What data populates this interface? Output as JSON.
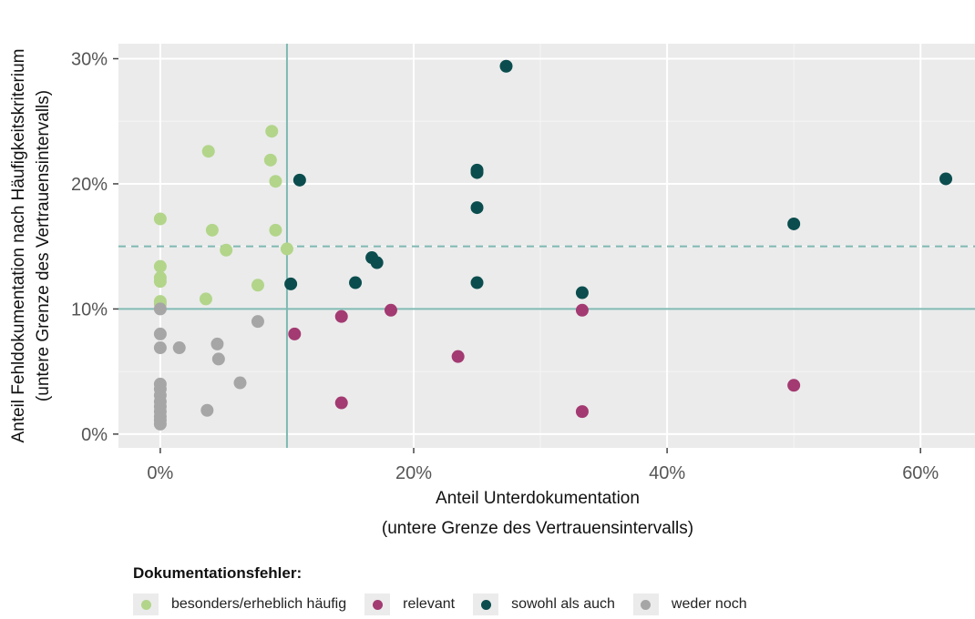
{
  "chart_data": {
    "type": "scatter",
    "xlabel_line1": "Anteil Unterdokumentation",
    "xlabel_line2": "(untere Grenze des Vertrauensintervalls)",
    "ylabel_line1": "Anteil Fehldokumentation nach Häufigkeitskriterium",
    "ylabel_line2": "(untere Grenze des Vertrauensintervalls)",
    "x_ticks": [
      {
        "value": 0,
        "label": "0%"
      },
      {
        "value": 20,
        "label": "20%"
      },
      {
        "value": 40,
        "label": "40%"
      },
      {
        "value": 60,
        "label": "60%"
      }
    ],
    "y_ticks": [
      {
        "value": 0,
        "label": "0%"
      },
      {
        "value": 10,
        "label": "10%"
      },
      {
        "value": 20,
        "label": "20%"
      },
      {
        "value": 30,
        "label": "30%"
      }
    ],
    "xlim": [
      -3.3,
      64.3
    ],
    "ylim": [
      -1.1,
      31.2
    ],
    "grid": true,
    "reference_lines": [
      {
        "orientation": "vertical",
        "value": 10,
        "style": "solid"
      },
      {
        "orientation": "horizontal",
        "value": 10,
        "style": "solid"
      },
      {
        "orientation": "horizontal",
        "value": 15,
        "style": "dashed"
      }
    ],
    "legend_title": "Dokumentationsfehler:",
    "legend_placement": "bottom",
    "series": [
      {
        "name": "besonders/erheblich häufig",
        "color": "#b2d58a",
        "points": [
          [
            0,
            17.2
          ],
          [
            0,
            13.4
          ],
          [
            0,
            12.5
          ],
          [
            0,
            12.2
          ],
          [
            0,
            10.6
          ],
          [
            0,
            10.4
          ],
          [
            3.8,
            22.6
          ],
          [
            4.1,
            16.3
          ],
          [
            3.6,
            10.8
          ],
          [
            5.2,
            14.7
          ],
          [
            8.8,
            24.2
          ],
          [
            8.7,
            21.9
          ],
          [
            9.1,
            20.2
          ],
          [
            9.1,
            16.3
          ],
          [
            7.7,
            11.9
          ],
          [
            10.0,
            14.8
          ]
        ]
      },
      {
        "name": "relevant",
        "color": "#a33a72",
        "points": [
          [
            10.6,
            8.0
          ],
          [
            14.3,
            9.4
          ],
          [
            18.2,
            9.9
          ],
          [
            14.3,
            2.5
          ],
          [
            23.5,
            6.2
          ],
          [
            33.3,
            9.9
          ],
          [
            33.3,
            1.8
          ],
          [
            50.0,
            3.9
          ]
        ]
      },
      {
        "name": "sowohl als auch",
        "color": "#0b4d4e",
        "points": [
          [
            10.3,
            12.0
          ],
          [
            11.0,
            20.3
          ],
          [
            15.4,
            12.1
          ],
          [
            16.7,
            14.1
          ],
          [
            17.1,
            13.7
          ],
          [
            25.0,
            21.1
          ],
          [
            25.0,
            20.9
          ],
          [
            25.0,
            18.1
          ],
          [
            25.0,
            12.1
          ],
          [
            27.3,
            29.4
          ],
          [
            33.3,
            11.3
          ],
          [
            50.0,
            16.8
          ],
          [
            62.0,
            20.4
          ]
        ]
      },
      {
        "name": "weder noch",
        "color": "#a6a6a6",
        "points": [
          [
            0,
            10.0
          ],
          [
            0,
            8.0
          ],
          [
            0,
            6.9
          ],
          [
            0,
            4.0
          ],
          [
            0,
            3.6
          ],
          [
            0,
            3.1
          ],
          [
            0,
            2.6
          ],
          [
            0,
            2.2
          ],
          [
            0,
            1.8
          ],
          [
            0,
            1.4
          ],
          [
            0,
            1.1
          ],
          [
            0,
            0.8
          ],
          [
            1.5,
            6.9
          ],
          [
            3.7,
            1.9
          ],
          [
            4.5,
            7.2
          ],
          [
            4.6,
            6.0
          ],
          [
            6.3,
            4.1
          ],
          [
            7.7,
            9.0
          ]
        ]
      }
    ]
  }
}
